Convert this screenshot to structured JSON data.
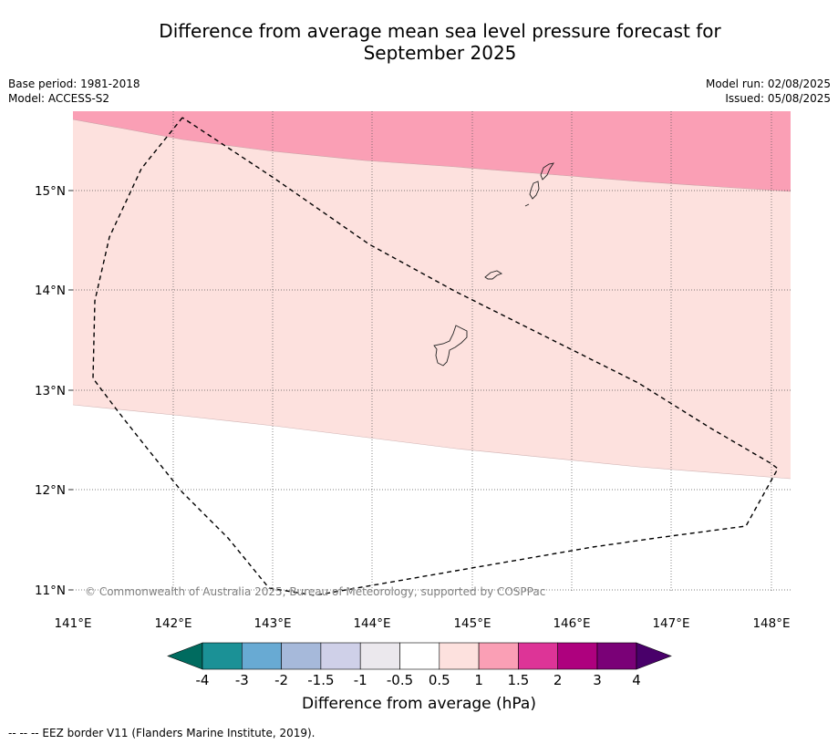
{
  "title_line1": "Difference from average mean sea level pressure forecast for",
  "title_line2": "September 2025",
  "meta": {
    "base_period": "Base period: 1981-2018",
    "model": "Model: ACCESS-S2",
    "model_run": "Model run: 02/08/2025",
    "issued": "Issued: 05/08/2025"
  },
  "map": {
    "lon_range": [
      141.0,
      148.2
    ],
    "lat_range": [
      10.77,
      15.8
    ],
    "lat_ticks": [
      "15°N",
      "14°N",
      "13°N",
      "12°N",
      "11°N"
    ],
    "lon_ticks": [
      "141°E",
      "142°E",
      "143°E",
      "144°E",
      "145°E",
      "146°E",
      "147°E",
      "148°E"
    ],
    "copyright": "© Commonwealth of Australia 2025, Bureau of Meteorology, supported by COSPPac"
  },
  "colorbar": {
    "tick_labels": [
      "-4",
      "-3",
      "-2",
      "-1.5",
      "-1",
      "-0.5",
      "0.5",
      "1",
      "1.5",
      "2",
      "3",
      "4"
    ],
    "colors": [
      "#006b5f",
      "#1b9196",
      "#68aad3",
      "#a6b9da",
      "#cfd0e8",
      "#ebe8ed",
      "#ffffff",
      "#fde1de",
      "#fa9fb5",
      "#dd3497",
      "#ae017e",
      "#7a0177",
      "#49006a"
    ],
    "caption": "Difference from average (hPa)"
  },
  "footnote": "--  --  -- EEZ border V11 (Flanders Marine Institute, 2019)."
}
